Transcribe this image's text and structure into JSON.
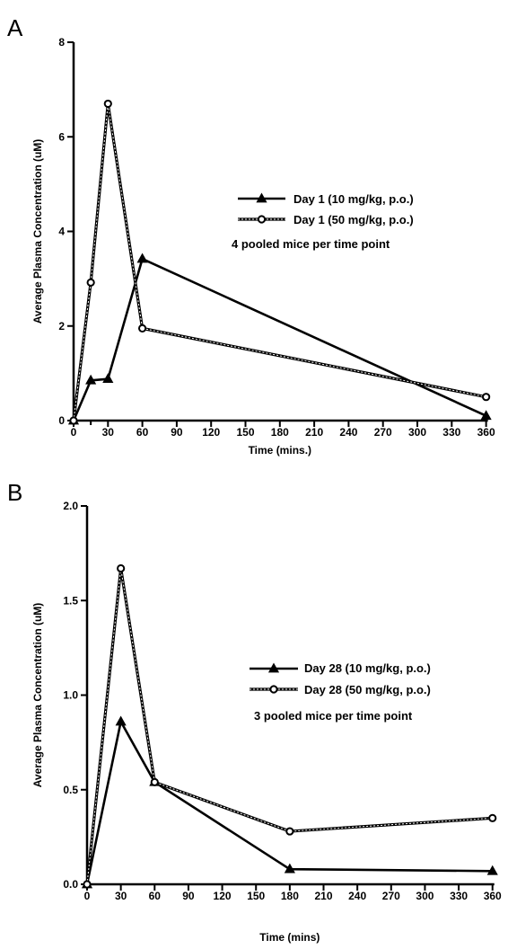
{
  "chart_data": [
    {
      "panel": "A",
      "type": "line",
      "title": "",
      "xlabel": "Time (mins.)",
      "ylabel": "Average Plasma Concentration (uM)",
      "xlim": [
        0,
        365
      ],
      "ylim": [
        0,
        8
      ],
      "xticks": [
        0,
        30,
        60,
        90,
        120,
        150,
        180,
        210,
        240,
        270,
        300,
        330,
        360
      ],
      "xticks_extra": [
        15
      ],
      "yticks": [
        0,
        2,
        4,
        6,
        8
      ],
      "grid": false,
      "legend_position": "right",
      "note": "4 pooled mice per time point",
      "series": [
        {
          "name": "Day 1 (10 mg/kg, p.o.)",
          "marker": "filled-triangle",
          "line": "solid",
          "x": [
            0,
            15,
            30,
            60,
            360
          ],
          "y": [
            0.0,
            0.85,
            0.88,
            3.42,
            0.1
          ]
        },
        {
          "name": "Day 1 (50 mg/kg, p.o.)",
          "marker": "open-circle",
          "line": "dotted-solid",
          "x": [
            0,
            15,
            30,
            60,
            360
          ],
          "y": [
            0.0,
            2.92,
            6.7,
            1.95,
            0.5
          ]
        }
      ]
    },
    {
      "panel": "B",
      "type": "line",
      "title": "",
      "xlabel": "Time (mins)",
      "ylabel": "Average Plasma Concentration (uM)",
      "xlim": [
        0,
        365
      ],
      "ylim": [
        0,
        2.0
      ],
      "xticks": [
        0,
        30,
        60,
        90,
        120,
        150,
        180,
        210,
        240,
        270,
        300,
        330,
        360
      ],
      "yticks": [
        0.0,
        0.5,
        1.0,
        1.5,
        2.0
      ],
      "ytick_labels": [
        "0.0",
        "0.5",
        "1.0",
        "1.5",
        "2.0"
      ],
      "grid": false,
      "legend_position": "right",
      "note": "3 pooled mice per time point",
      "series": [
        {
          "name": "Day 28 (10 mg/kg, p.o.)",
          "marker": "filled-triangle",
          "line": "solid",
          "x": [
            0,
            30,
            60,
            180,
            360
          ],
          "y": [
            0.0,
            0.86,
            0.54,
            0.08,
            0.07
          ]
        },
        {
          "name": "Day 28 (50 mg/kg, p.o.)",
          "marker": "open-circle",
          "line": "dotted-solid",
          "x": [
            0,
            30,
            60,
            180,
            360
          ],
          "y": [
            0.0,
            1.67,
            0.54,
            0.28,
            0.35
          ]
        }
      ]
    }
  ]
}
